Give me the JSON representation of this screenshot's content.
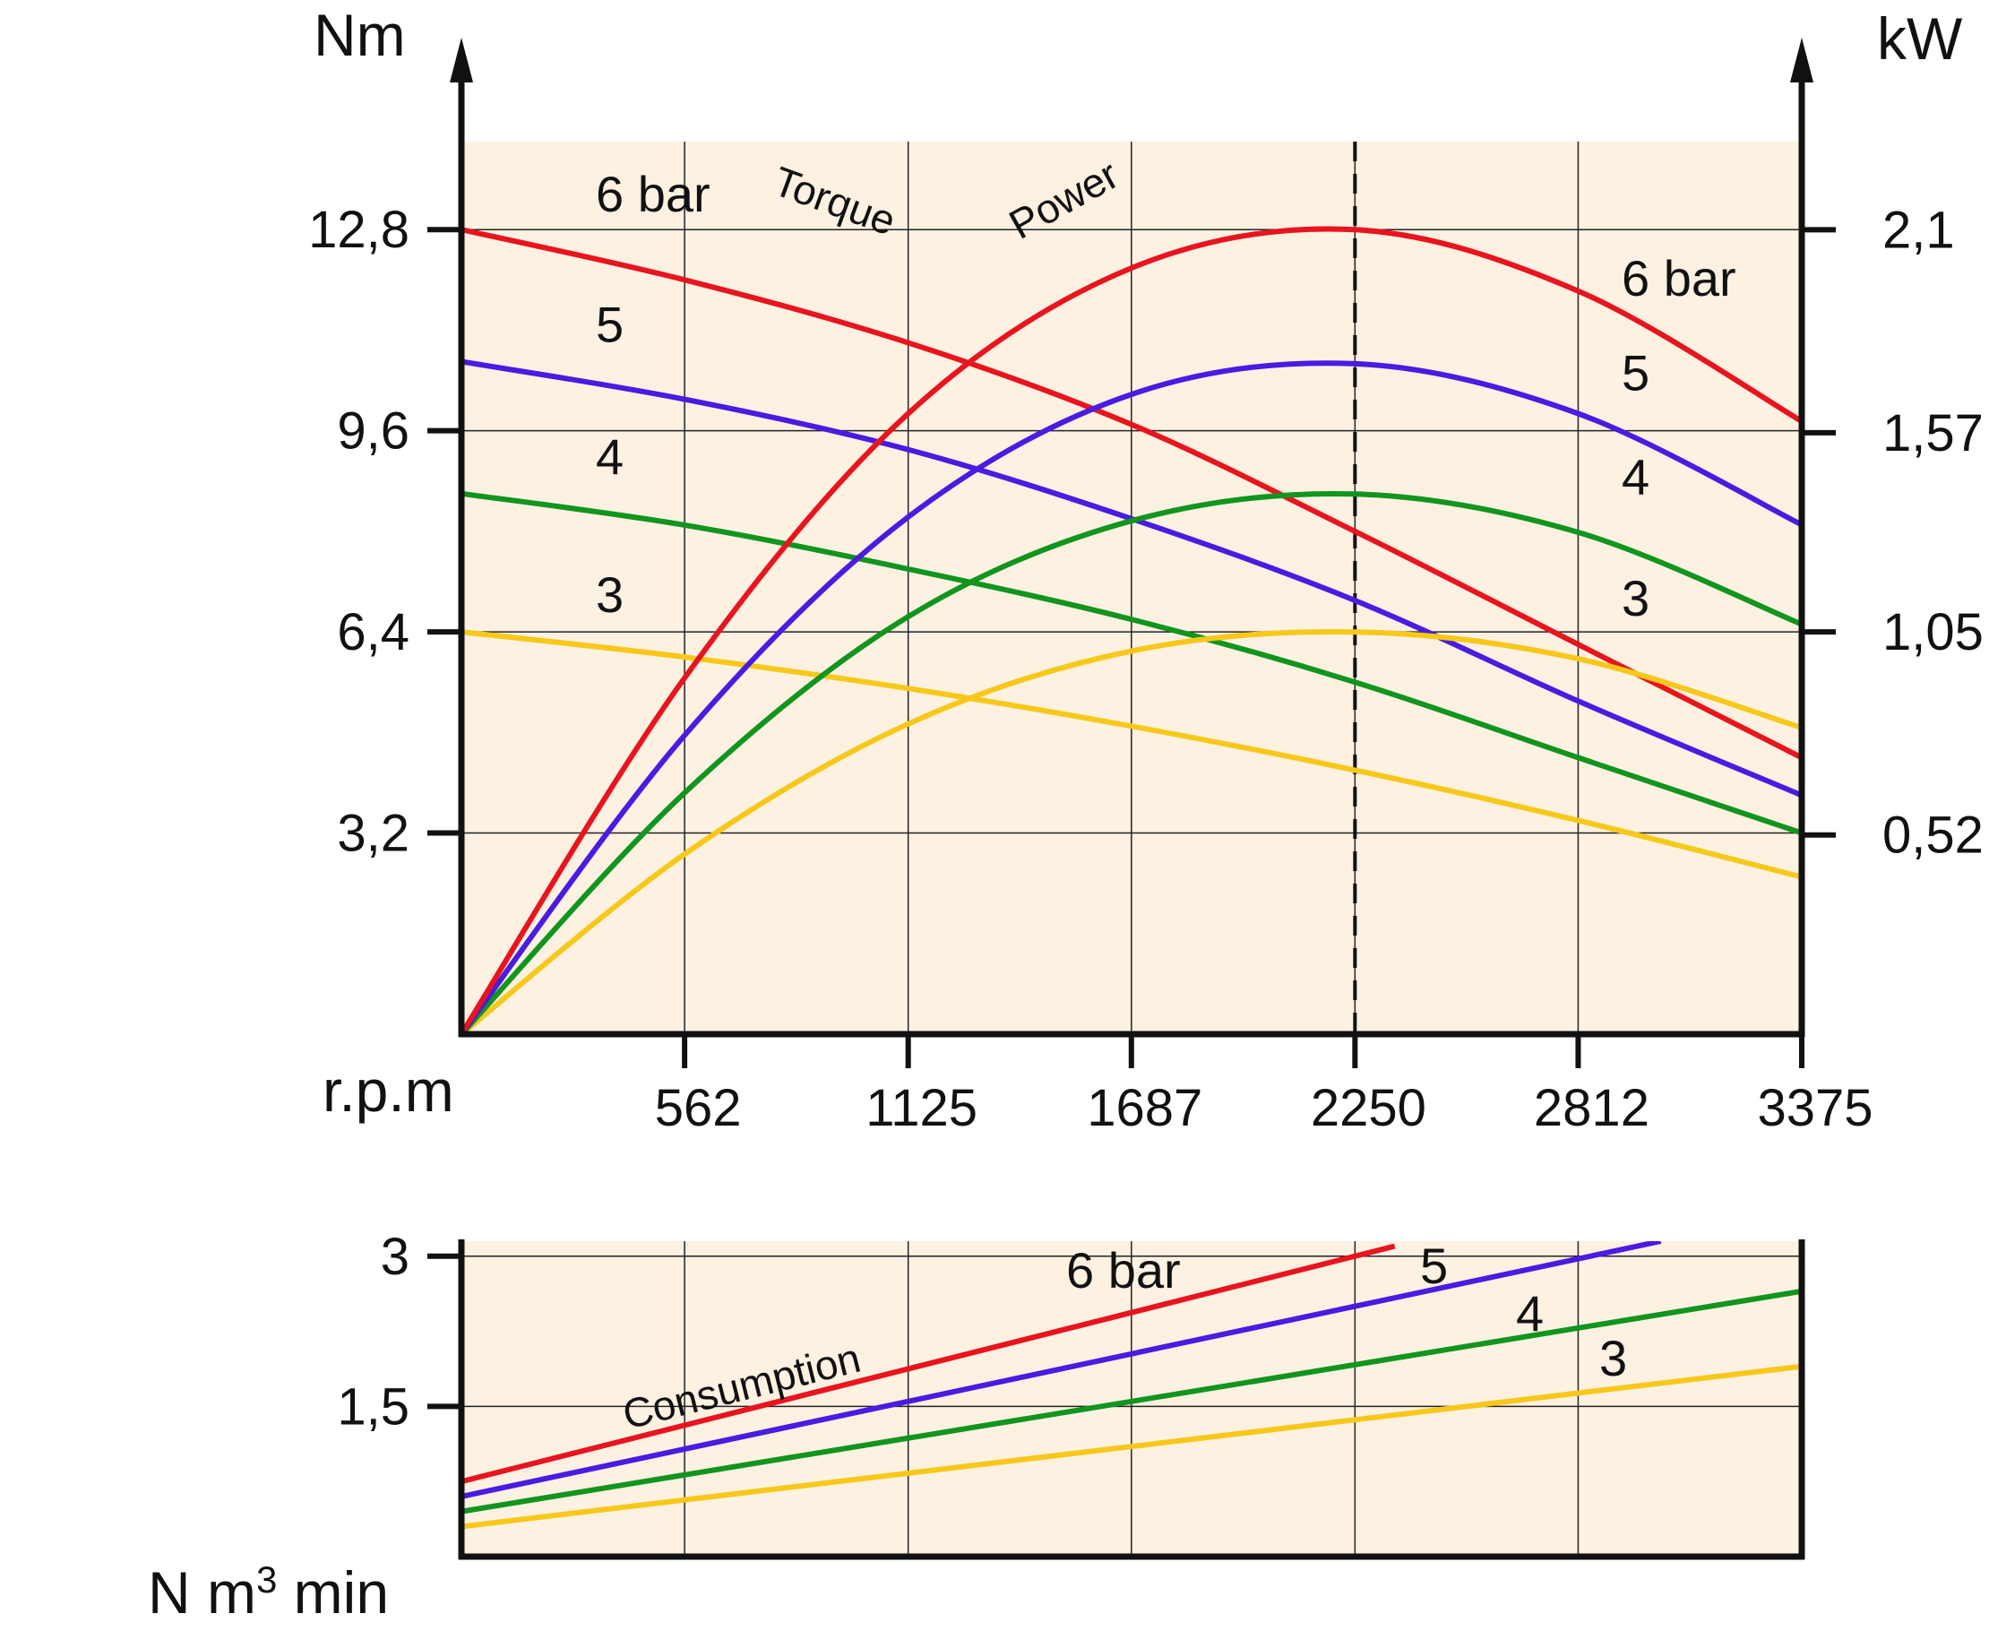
{
  "colors": {
    "panel_bg": "#fdf1e2",
    "grid": "#222222",
    "axis": "#111111",
    "6 bar": "#e8141e",
    "5": "#4a1be0",
    "4": "#12951e",
    "3": "#f7c81a"
  },
  "chart_data": [
    {
      "id": "torque-power",
      "type": "line",
      "x_unit_label": "r.p.m",
      "y_left_unit": "Nm",
      "y_right_unit": "kW",
      "xlim": [
        0,
        3375
      ],
      "ylim": [
        0,
        14.2
      ],
      "ylim_right": [
        0,
        2.33
      ],
      "x_ticks": [
        "562",
        "1125",
        "1687",
        "2250",
        "2812",
        "3375"
      ],
      "x_tick_values": [
        562,
        1125,
        1687,
        2250,
        2812,
        3375
      ],
      "y_left_ticks": [
        "3,2",
        "6,4",
        "9,6",
        "12,8"
      ],
      "y_left_tick_values": [
        3.2,
        6.4,
        9.6,
        12.8
      ],
      "y_right_ticks": [
        "0,52",
        "1,05",
        "1,57",
        "2,1"
      ],
      "y_right_tick_values": [
        0.52,
        1.05,
        1.57,
        2.1
      ],
      "reference_line_x": 2250,
      "grid": true,
      "annotations": [
        "Torque",
        "Power"
      ],
      "series": [
        {
          "group": "torque",
          "name": "6 bar",
          "color_key": "6 bar",
          "label": "6 bar",
          "x": [
            0,
            562,
            1125,
            1687,
            2250,
            2812,
            3375
          ],
          "y": [
            12.8,
            12.0,
            11.0,
            9.7,
            8.0,
            6.2,
            4.4
          ]
        },
        {
          "group": "torque",
          "name": "5",
          "color_key": "5",
          "label": "5",
          "x": [
            0,
            562,
            1125,
            1687,
            2250,
            2812,
            3375
          ],
          "y": [
            10.7,
            10.1,
            9.3,
            8.2,
            6.9,
            5.3,
            3.8
          ]
        },
        {
          "group": "torque",
          "name": "4",
          "color_key": "4",
          "label": "4",
          "x": [
            0,
            562,
            1125,
            1687,
            2250,
            2812,
            3375
          ],
          "y": [
            8.6,
            8.1,
            7.4,
            6.6,
            5.6,
            4.4,
            3.2
          ]
        },
        {
          "group": "torque",
          "name": "3",
          "color_key": "3",
          "label": "3",
          "x": [
            0,
            562,
            1125,
            1687,
            2250,
            2812,
            3375
          ],
          "y": [
            6.4,
            6.0,
            5.5,
            4.9,
            4.2,
            3.4,
            2.5
          ]
        },
        {
          "group": "power",
          "name": "6 bar",
          "color_key": "6 bar",
          "label": "6 bar",
          "peak_x": 2250,
          "x": [
            0,
            562,
            1125,
            1687,
            2250,
            2812,
            3375
          ],
          "y": [
            0,
            0.93,
            1.62,
            2.0,
            2.1,
            1.94,
            1.6
          ]
        },
        {
          "group": "power",
          "name": "5",
          "color_key": "5",
          "label": "5",
          "peak_x": 2250,
          "x": [
            0,
            562,
            1125,
            1687,
            2250,
            2812,
            3375
          ],
          "y": [
            0,
            0.78,
            1.35,
            1.67,
            1.75,
            1.62,
            1.33
          ]
        },
        {
          "group": "power",
          "name": "4",
          "color_key": "4",
          "label": "4",
          "peak_x": 2250,
          "x": [
            0,
            562,
            1125,
            1687,
            2250,
            2812,
            3375
          ],
          "y": [
            0,
            0.63,
            1.09,
            1.34,
            1.41,
            1.31,
            1.07
          ]
        },
        {
          "group": "power",
          "name": "3",
          "color_key": "3",
          "label": "3",
          "peak_x": 2250,
          "x": [
            0,
            562,
            1125,
            1687,
            2250,
            2812,
            3375
          ],
          "y": [
            0,
            0.47,
            0.81,
            1.0,
            1.05,
            0.98,
            0.8
          ]
        }
      ]
    },
    {
      "id": "consumption",
      "type": "line",
      "y_unit_label": "N m",
      "y_unit_sup": "3",
      "y_unit_suffix": " min",
      "xlim": [
        0,
        3375
      ],
      "ylim": [
        0,
        3.15
      ],
      "y_ticks": [
        "1,5",
        "3"
      ],
      "y_tick_values": [
        1.5,
        3.0
      ],
      "grid_x": [
        562,
        1125,
        1687,
        2250,
        2812,
        3375
      ],
      "grid": true,
      "annotation": "Consumption",
      "series": [
        {
          "name": "6 bar",
          "color_key": "6 bar",
          "label": "6 bar",
          "x": [
            0,
            2350
          ],
          "y": [
            0.75,
            3.1
          ]
        },
        {
          "name": "5",
          "color_key": "5",
          "label": "5",
          "x": [
            0,
            3020
          ],
          "y": [
            0.6,
            3.15
          ]
        },
        {
          "name": "4",
          "color_key": "4",
          "label": "4",
          "x": [
            0,
            3375
          ],
          "y": [
            0.45,
            2.65
          ]
        },
        {
          "name": "3",
          "color_key": "3",
          "label": "3",
          "x": [
            0,
            3375
          ],
          "y": [
            0.3,
            1.9
          ]
        }
      ]
    }
  ]
}
